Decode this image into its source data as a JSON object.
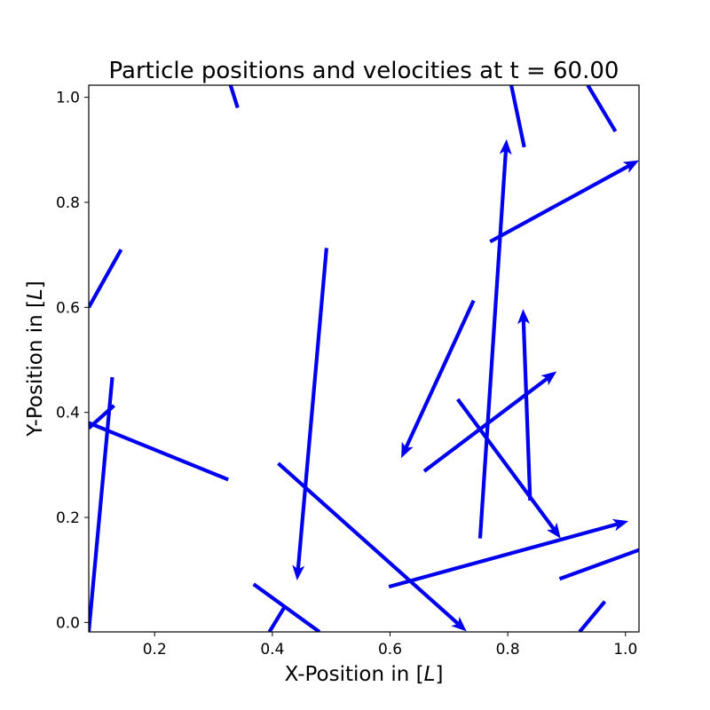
{
  "chart_data": {
    "type": "quiver",
    "title": "Particle positions and velocities at t = 60.00",
    "xlabel_prefix": "X-Position in [",
    "xlabel_var": "L",
    "xlabel_suffix": "]",
    "ylabel_prefix": "Y-Position in [",
    "ylabel_var": "L",
    "ylabel_suffix": "]",
    "xlim": [
      0.088,
      1.023
    ],
    "ylim": [
      -0.018,
      1.023
    ],
    "xticks": [
      0.2,
      0.4,
      0.6,
      0.8,
      1.0
    ],
    "xtick_labels": [
      "0.2",
      "0.4",
      "0.6",
      "0.8",
      "1.0"
    ],
    "yticks": [
      0.0,
      0.2,
      0.4,
      0.6,
      0.8,
      1.0
    ],
    "ytick_labels": [
      "0.0",
      "0.2",
      "0.4",
      "0.6",
      "0.8",
      "1.0"
    ],
    "grid": false,
    "arrow_color": "#0000ee",
    "arrows": [
      {
        "x": 0.492,
        "y": 0.713,
        "u": -0.05,
        "v": -0.633,
        "head": true
      },
      {
        "x": 0.753,
        "y": 0.16,
        "u": 0.045,
        "v": 0.76,
        "head": true
      },
      {
        "x": 0.838,
        "y": 0.232,
        "u": -0.012,
        "v": 0.365,
        "head": true
      },
      {
        "x": 0.742,
        "y": 0.613,
        "u": -0.123,
        "v": -0.3,
        "head": true
      },
      {
        "x": 0.658,
        "y": 0.288,
        "u": 0.225,
        "v": 0.19,
        "head": true
      },
      {
        "x": 0.715,
        "y": 0.425,
        "u": 0.175,
        "v": -0.265,
        "head": true
      },
      {
        "x": 0.598,
        "y": 0.068,
        "u": 0.407,
        "v": 0.125,
        "head": true
      },
      {
        "x": 0.41,
        "y": 0.303,
        "u": 0.32,
        "v": -0.32,
        "head": true
      },
      {
        "x": 0.77,
        "y": 0.725,
        "u": 0.253,
        "v": 0.155,
        "head": true
      },
      {
        "x": 0.088,
        "y": -0.018,
        "u": 0.04,
        "v": 0.485,
        "head": false
      },
      {
        "x": 0.325,
        "y": 0.272,
        "u": -0.237,
        "v": 0.108,
        "head": false
      },
      {
        "x": 0.088,
        "y": 0.37,
        "u": 0.043,
        "v": 0.043,
        "head": false
      },
      {
        "x": 0.088,
        "y": 0.6,
        "u": 0.055,
        "v": 0.11,
        "head": false
      },
      {
        "x": 0.341,
        "y": 0.98,
        "u": -0.012,
        "v": 0.043,
        "head": false
      },
      {
        "x": 0.828,
        "y": 0.905,
        "u": -0.022,
        "v": 0.118,
        "head": false
      },
      {
        "x": 0.983,
        "y": 0.935,
        "u": -0.047,
        "v": 0.088,
        "head": false
      },
      {
        "x": 0.888,
        "y": 0.083,
        "u": 0.135,
        "v": 0.055,
        "head": false
      },
      {
        "x": 0.922,
        "y": -0.018,
        "u": 0.043,
        "v": 0.058,
        "head": false
      },
      {
        "x": 0.368,
        "y": 0.073,
        "u": 0.112,
        "v": -0.091,
        "head": false
      },
      {
        "x": 0.395,
        "y": -0.018,
        "u": 0.026,
        "v": 0.048,
        "head": false
      }
    ]
  }
}
